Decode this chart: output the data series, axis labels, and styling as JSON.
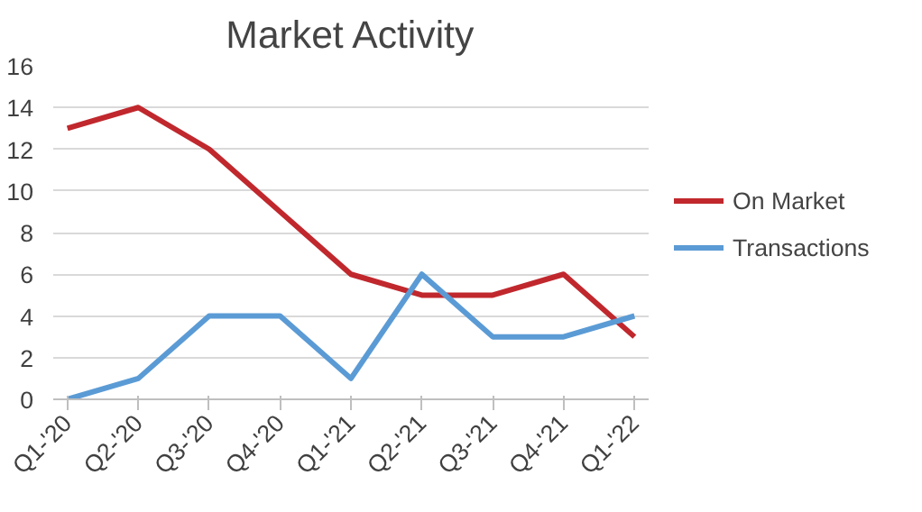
{
  "chart_data": {
    "type": "line",
    "title": "Market Activity",
    "categories": [
      "Q1-'20",
      "Q2-'20",
      "Q3-'20",
      "Q4-'20",
      "Q1-'21",
      "Q2-'21",
      "Q3-'21",
      "Q4-'21",
      "Q1-'22"
    ],
    "series": [
      {
        "name": "On Market",
        "color": "#c0282d",
        "values": [
          13,
          14,
          12,
          9,
          6,
          5,
          5,
          6,
          3
        ]
      },
      {
        "name": "Transactions",
        "color": "#5b9bd5",
        "values": [
          0,
          1,
          4,
          4,
          1,
          6,
          3,
          3,
          4
        ]
      }
    ],
    "ylim": [
      0,
      16
    ],
    "yticks": [
      0,
      2,
      4,
      6,
      8,
      10,
      12,
      14,
      16
    ],
    "grid": "y",
    "legend": "right",
    "marker": "none",
    "line_style": "solid"
  }
}
